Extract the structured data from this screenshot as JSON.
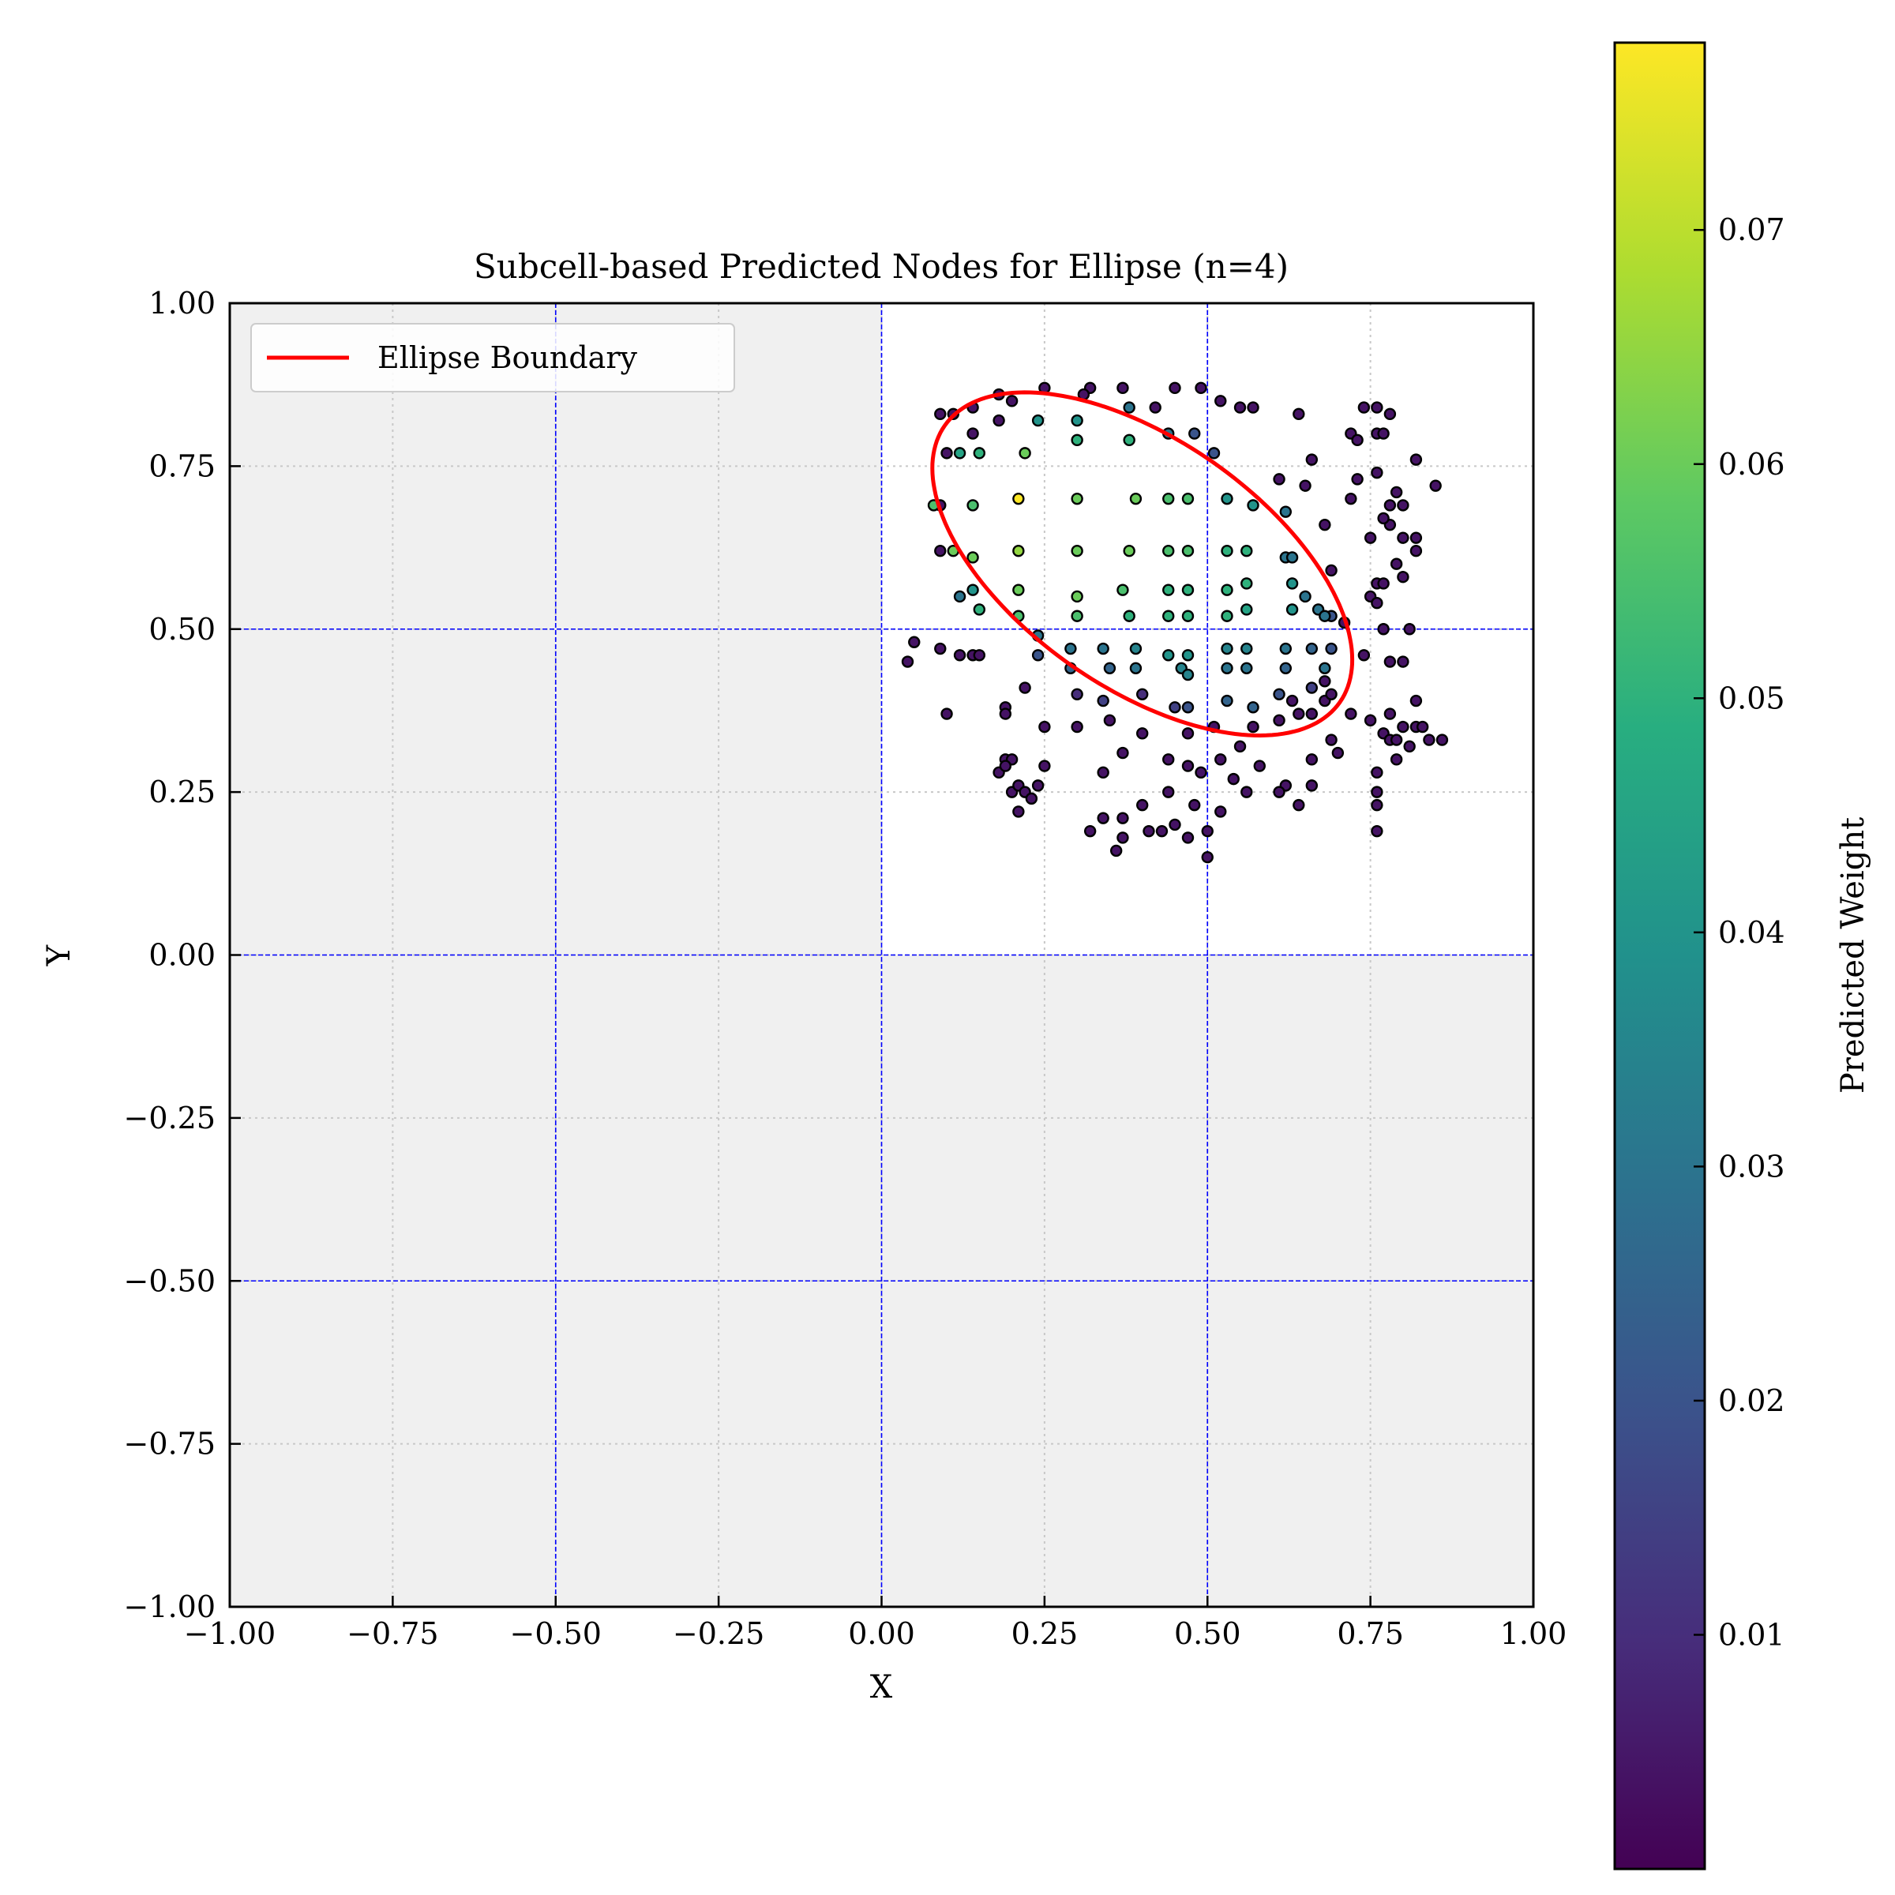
{
  "chart_data": {
    "type": "scatter",
    "title": "Subcell-based Predicted Nodes for Ellipse (n=4)",
    "xlabel": "X",
    "ylabel": "Y",
    "xlim": [
      -1.0,
      1.0
    ],
    "ylim": [
      -1.0,
      1.0
    ],
    "xticks": [
      -1.0,
      -0.75,
      -0.5,
      -0.25,
      0.0,
      0.25,
      0.5,
      0.75,
      1.0
    ],
    "yticks": [
      -1.0,
      -0.75,
      -0.5,
      -0.25,
      0.0,
      0.25,
      0.5,
      0.75,
      1.0
    ],
    "xtick_labels": [
      "−1.00",
      "−0.75",
      "−0.50",
      "−0.25",
      "0.00",
      "0.25",
      "0.50",
      "0.75",
      "1.00"
    ],
    "ytick_labels": [
      "−1.00",
      "−0.75",
      "−0.50",
      "−0.25",
      "0.00",
      "0.25",
      "0.50",
      "0.75",
      "1.00"
    ],
    "grid": "dotted",
    "subcell_lines": {
      "x": [
        -0.5,
        0.0,
        0.5
      ],
      "y": [
        -0.5,
        0.0,
        0.5
      ],
      "color": "#0000ff",
      "style": "dashed"
    },
    "shaded_region_color": "#f0f0f0",
    "active_cell": {
      "x": [
        0.0,
        1.0
      ],
      "y": [
        0.0,
        1.0
      ]
    },
    "legend": {
      "location": "upper-left",
      "entries": [
        {
          "label": "Ellipse Boundary",
          "color": "#ff0000"
        }
      ]
    },
    "ellipse": {
      "center": [
        0.4,
        0.6
      ],
      "semi_major": 0.37,
      "semi_minor": 0.19,
      "angle_deg": -35,
      "color": "#ff0000"
    },
    "colorbar": {
      "label": "Predicted Weight",
      "range": [
        0.0,
        0.078
      ],
      "ticks": [
        0.01,
        0.02,
        0.03,
        0.04,
        0.05,
        0.06,
        0.07
      ],
      "tick_labels": [
        "0.01",
        "0.02",
        "0.03",
        "0.04",
        "0.05",
        "0.06",
        "0.07"
      ],
      "colormap": "viridis"
    },
    "points": [
      [
        0.09,
        0.83,
        0.004
      ],
      [
        0.11,
        0.83,
        0.004
      ],
      [
        0.14,
        0.84,
        0.004
      ],
      [
        0.18,
        0.86,
        0.004
      ],
      [
        0.2,
        0.85,
        0.004
      ],
      [
        0.25,
        0.87,
        0.004
      ],
      [
        0.32,
        0.87,
        0.004
      ],
      [
        0.37,
        0.87,
        0.004
      ],
      [
        0.45,
        0.87,
        0.004
      ],
      [
        0.49,
        0.87,
        0.004
      ],
      [
        0.52,
        0.85,
        0.004
      ],
      [
        0.14,
        0.8,
        0.004
      ],
      [
        0.18,
        0.82,
        0.004
      ],
      [
        0.31,
        0.86,
        0.004
      ],
      [
        0.42,
        0.84,
        0.004
      ],
      [
        0.55,
        0.84,
        0.004
      ],
      [
        0.57,
        0.84,
        0.004
      ],
      [
        0.64,
        0.83,
        0.004
      ],
      [
        0.1,
        0.77,
        0.004
      ],
      [
        0.09,
        0.69,
        0.004
      ],
      [
        0.09,
        0.62,
        0.004
      ],
      [
        0.12,
        0.77,
        0.045
      ],
      [
        0.15,
        0.77,
        0.05
      ],
      [
        0.22,
        0.77,
        0.06
      ],
      [
        0.24,
        0.82,
        0.04
      ],
      [
        0.3,
        0.82,
        0.04
      ],
      [
        0.3,
        0.79,
        0.05
      ],
      [
        0.38,
        0.79,
        0.05
      ],
      [
        0.38,
        0.84,
        0.03
      ],
      [
        0.44,
        0.8,
        0.03
      ],
      [
        0.48,
        0.8,
        0.02
      ],
      [
        0.51,
        0.77,
        0.02
      ],
      [
        0.08,
        0.69,
        0.055
      ],
      [
        0.14,
        0.69,
        0.055
      ],
      [
        0.21,
        0.7,
        0.078
      ],
      [
        0.3,
        0.7,
        0.06
      ],
      [
        0.39,
        0.7,
        0.06
      ],
      [
        0.44,
        0.7,
        0.055
      ],
      [
        0.47,
        0.7,
        0.055
      ],
      [
        0.53,
        0.7,
        0.04
      ],
      [
        0.57,
        0.69,
        0.04
      ],
      [
        0.62,
        0.68,
        0.03
      ],
      [
        0.11,
        0.62,
        0.06
      ],
      [
        0.14,
        0.61,
        0.06
      ],
      [
        0.21,
        0.62,
        0.065
      ],
      [
        0.3,
        0.62,
        0.06
      ],
      [
        0.38,
        0.62,
        0.06
      ],
      [
        0.44,
        0.62,
        0.055
      ],
      [
        0.47,
        0.62,
        0.055
      ],
      [
        0.53,
        0.62,
        0.05
      ],
      [
        0.56,
        0.62,
        0.05
      ],
      [
        0.62,
        0.61,
        0.03
      ],
      [
        0.63,
        0.61,
        0.03
      ],
      [
        0.21,
        0.56,
        0.06
      ],
      [
        0.3,
        0.55,
        0.06
      ],
      [
        0.37,
        0.56,
        0.055
      ],
      [
        0.44,
        0.56,
        0.05
      ],
      [
        0.47,
        0.56,
        0.05
      ],
      [
        0.53,
        0.56,
        0.05
      ],
      [
        0.56,
        0.57,
        0.05
      ],
      [
        0.63,
        0.57,
        0.04
      ],
      [
        0.65,
        0.55,
        0.03
      ],
      [
        0.67,
        0.53,
        0.03
      ],
      [
        0.69,
        0.52,
        0.02
      ],
      [
        0.12,
        0.55,
        0.03
      ],
      [
        0.14,
        0.56,
        0.04
      ],
      [
        0.15,
        0.53,
        0.05
      ],
      [
        0.21,
        0.52,
        0.055
      ],
      [
        0.3,
        0.52,
        0.055
      ],
      [
        0.38,
        0.52,
        0.05
      ],
      [
        0.44,
        0.52,
        0.05
      ],
      [
        0.47,
        0.52,
        0.05
      ],
      [
        0.53,
        0.52,
        0.05
      ],
      [
        0.56,
        0.53,
        0.045
      ],
      [
        0.63,
        0.53,
        0.04
      ],
      [
        0.68,
        0.52,
        0.03
      ],
      [
        0.24,
        0.49,
        0.03
      ],
      [
        0.29,
        0.47,
        0.03
      ],
      [
        0.34,
        0.47,
        0.03
      ],
      [
        0.39,
        0.47,
        0.035
      ],
      [
        0.44,
        0.46,
        0.04
      ],
      [
        0.47,
        0.46,
        0.04
      ],
      [
        0.53,
        0.47,
        0.035
      ],
      [
        0.56,
        0.47,
        0.035
      ],
      [
        0.62,
        0.47,
        0.03
      ],
      [
        0.66,
        0.47,
        0.025
      ],
      [
        0.69,
        0.47,
        0.02
      ],
      [
        0.24,
        0.46,
        0.02
      ],
      [
        0.29,
        0.44,
        0.025
      ],
      [
        0.35,
        0.44,
        0.025
      ],
      [
        0.39,
        0.44,
        0.03
      ],
      [
        0.46,
        0.44,
        0.035
      ],
      [
        0.47,
        0.43,
        0.035
      ],
      [
        0.53,
        0.44,
        0.03
      ],
      [
        0.56,
        0.44,
        0.03
      ],
      [
        0.62,
        0.44,
        0.025
      ],
      [
        0.68,
        0.44,
        0.03
      ],
      [
        0.3,
        0.4,
        0.01
      ],
      [
        0.34,
        0.39,
        0.015
      ],
      [
        0.4,
        0.4,
        0.01
      ],
      [
        0.45,
        0.38,
        0.015
      ],
      [
        0.47,
        0.38,
        0.02
      ],
      [
        0.53,
        0.39,
        0.025
      ],
      [
        0.57,
        0.38,
        0.025
      ],
      [
        0.61,
        0.4,
        0.02
      ],
      [
        0.66,
        0.41,
        0.015
      ],
      [
        0.04,
        0.45,
        0.004
      ],
      [
        0.05,
        0.48,
        0.004
      ],
      [
        0.09,
        0.47,
        0.004
      ],
      [
        0.12,
        0.46,
        0.004
      ],
      [
        0.14,
        0.46,
        0.004
      ],
      [
        0.15,
        0.46,
        0.004
      ],
      [
        0.1,
        0.37,
        0.004
      ],
      [
        0.19,
        0.38,
        0.004
      ],
      [
        0.19,
        0.37,
        0.004
      ],
      [
        0.22,
        0.41,
        0.004
      ],
      [
        0.25,
        0.35,
        0.004
      ],
      [
        0.3,
        0.35,
        0.004
      ],
      [
        0.35,
        0.36,
        0.004
      ],
      [
        0.4,
        0.34,
        0.004
      ],
      [
        0.47,
        0.34,
        0.004
      ],
      [
        0.51,
        0.35,
        0.004
      ],
      [
        0.55,
        0.32,
        0.004
      ],
      [
        0.19,
        0.3,
        0.004
      ],
      [
        0.2,
        0.3,
        0.004
      ],
      [
        0.18,
        0.28,
        0.004
      ],
      [
        0.19,
        0.29,
        0.004
      ],
      [
        0.25,
        0.29,
        0.004
      ],
      [
        0.34,
        0.28,
        0.004
      ],
      [
        0.37,
        0.31,
        0.004
      ],
      [
        0.44,
        0.3,
        0.004
      ],
      [
        0.47,
        0.29,
        0.004
      ],
      [
        0.49,
        0.28,
        0.004
      ],
      [
        0.52,
        0.3,
        0.004
      ],
      [
        0.54,
        0.27,
        0.004
      ],
      [
        0.58,
        0.29,
        0.004
      ],
      [
        0.62,
        0.26,
        0.004
      ],
      [
        0.66,
        0.26,
        0.004
      ],
      [
        0.7,
        0.31,
        0.004
      ],
      [
        0.2,
        0.25,
        0.004
      ],
      [
        0.21,
        0.26,
        0.004
      ],
      [
        0.22,
        0.25,
        0.004
      ],
      [
        0.23,
        0.24,
        0.004
      ],
      [
        0.24,
        0.26,
        0.004
      ],
      [
        0.21,
        0.22,
        0.004
      ],
      [
        0.34,
        0.21,
        0.004
      ],
      [
        0.37,
        0.21,
        0.004
      ],
      [
        0.4,
        0.23,
        0.004
      ],
      [
        0.44,
        0.25,
        0.004
      ],
      [
        0.48,
        0.23,
        0.004
      ],
      [
        0.52,
        0.22,
        0.004
      ],
      [
        0.56,
        0.25,
        0.004
      ],
      [
        0.61,
        0.25,
        0.004
      ],
      [
        0.64,
        0.23,
        0.004
      ],
      [
        0.66,
        0.3,
        0.004
      ],
      [
        0.32,
        0.19,
        0.004
      ],
      [
        0.37,
        0.18,
        0.004
      ],
      [
        0.41,
        0.19,
        0.004
      ],
      [
        0.43,
        0.19,
        0.004
      ],
      [
        0.45,
        0.2,
        0.004
      ],
      [
        0.47,
        0.18,
        0.004
      ],
      [
        0.5,
        0.19,
        0.004
      ],
      [
        0.36,
        0.16,
        0.004
      ],
      [
        0.5,
        0.15,
        0.004
      ],
      [
        0.57,
        0.35,
        0.004
      ],
      [
        0.61,
        0.36,
        0.004
      ],
      [
        0.63,
        0.39,
        0.004
      ],
      [
        0.64,
        0.37,
        0.004
      ],
      [
        0.66,
        0.37,
        0.004
      ],
      [
        0.68,
        0.39,
        0.004
      ],
      [
        0.68,
        0.42,
        0.004
      ],
      [
        0.69,
        0.4,
        0.004
      ],
      [
        0.69,
        0.33,
        0.004
      ],
      [
        0.72,
        0.37,
        0.004
      ],
      [
        0.61,
        0.73,
        0.004
      ],
      [
        0.65,
        0.72,
        0.004
      ],
      [
        0.66,
        0.76,
        0.004
      ],
      [
        0.68,
        0.66,
        0.004
      ],
      [
        0.69,
        0.59,
        0.004
      ],
      [
        0.71,
        0.51,
        0.004
      ],
      [
        0.72,
        0.8,
        0.004
      ],
      [
        0.73,
        0.79,
        0.004
      ],
      [
        0.73,
        0.73,
        0.004
      ],
      [
        0.72,
        0.7,
        0.004
      ],
      [
        0.74,
        0.84,
        0.004
      ],
      [
        0.76,
        0.84,
        0.004
      ],
      [
        0.78,
        0.83,
        0.004
      ],
      [
        0.76,
        0.8,
        0.004
      ],
      [
        0.77,
        0.8,
        0.004
      ],
      [
        0.76,
        0.74,
        0.004
      ],
      [
        0.78,
        0.69,
        0.004
      ],
      [
        0.79,
        0.71,
        0.004
      ],
      [
        0.8,
        0.69,
        0.004
      ],
      [
        0.78,
        0.66,
        0.004
      ],
      [
        0.8,
        0.64,
        0.004
      ],
      [
        0.82,
        0.64,
        0.004
      ],
      [
        0.79,
        0.6,
        0.004
      ],
      [
        0.82,
        0.62,
        0.004
      ],
      [
        0.82,
        0.76,
        0.004
      ],
      [
        0.85,
        0.72,
        0.004
      ],
      [
        0.77,
        0.67,
        0.004
      ],
      [
        0.75,
        0.64,
        0.004
      ],
      [
        0.76,
        0.57,
        0.004
      ],
      [
        0.77,
        0.57,
        0.004
      ],
      [
        0.75,
        0.55,
        0.004
      ],
      [
        0.76,
        0.54,
        0.004
      ],
      [
        0.8,
        0.58,
        0.004
      ],
      [
        0.77,
        0.5,
        0.004
      ],
      [
        0.78,
        0.45,
        0.004
      ],
      [
        0.8,
        0.45,
        0.004
      ],
      [
        0.81,
        0.5,
        0.004
      ],
      [
        0.74,
        0.46,
        0.004
      ],
      [
        0.75,
        0.36,
        0.004
      ],
      [
        0.77,
        0.34,
        0.004
      ],
      [
        0.78,
        0.33,
        0.004
      ],
      [
        0.79,
        0.33,
        0.004
      ],
      [
        0.8,
        0.35,
        0.004
      ],
      [
        0.82,
        0.35,
        0.004
      ],
      [
        0.83,
        0.35,
        0.004
      ],
      [
        0.84,
        0.33,
        0.004
      ],
      [
        0.86,
        0.33,
        0.004
      ],
      [
        0.81,
        0.32,
        0.004
      ],
      [
        0.79,
        0.3,
        0.004
      ],
      [
        0.78,
        0.37,
        0.004
      ],
      [
        0.82,
        0.39,
        0.004
      ],
      [
        0.76,
        0.28,
        0.004
      ],
      [
        0.76,
        0.25,
        0.004
      ],
      [
        0.76,
        0.23,
        0.004
      ],
      [
        0.76,
        0.19,
        0.004
      ]
    ]
  }
}
